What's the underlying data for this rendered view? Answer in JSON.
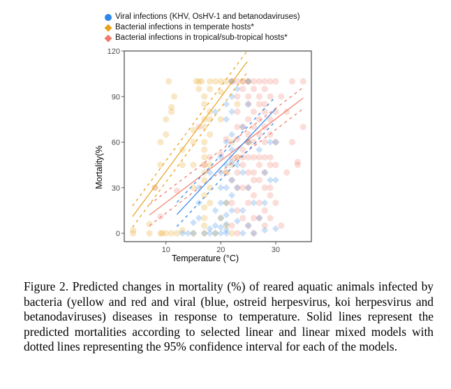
{
  "chart_data": {
    "type": "scatter",
    "title": "",
    "xlabel": "Temperature (°C)",
    "ylabel": "Mortality(%",
    "xlim": [
      2.4,
      36.5
    ],
    "ylim": [
      -5.5,
      120
    ],
    "xticks": [
      10,
      20,
      30
    ],
    "yticks": [
      0,
      30,
      60,
      90,
      120
    ],
    "grid": false,
    "legend_position": "top",
    "legend": [
      {
        "label": "Viral infections (KHV, OsHV-1 and betanodaviruses)",
        "color": "#2f86e8",
        "shape": "circle"
      },
      {
        "label": "Bacterial infections in temperate hosts*",
        "color": "#e8a21c",
        "shape": "diamond"
      },
      {
        "label": "Bacterial infections in tropical/sub-tropical hosts*",
        "color": "#f07a6a",
        "shape": "diamond"
      }
    ],
    "series": [
      {
        "name": "Bacterial infections in temperate hosts",
        "color": "#e8a21c",
        "marker": "circle",
        "points": [
          [
            4,
            0
          ],
          [
            4,
            2
          ],
          [
            7,
            0
          ],
          [
            7,
            6
          ],
          [
            9,
            0
          ],
          [
            9.3,
            0
          ],
          [
            10,
            0
          ],
          [
            11,
            0
          ],
          [
            12,
            0
          ],
          [
            8,
            30
          ],
          [
            9,
            45
          ],
          [
            9,
            60
          ],
          [
            10,
            65
          ],
          [
            10.5,
            100
          ],
          [
            10,
            75
          ],
          [
            11,
            80
          ],
          [
            11,
            83
          ],
          [
            11.5,
            90
          ],
          [
            13,
            45
          ],
          [
            13,
            55
          ],
          [
            15,
            30
          ],
          [
            15,
            45
          ],
          [
            15,
            60
          ],
          [
            15,
            68
          ],
          [
            15.5,
            100
          ],
          [
            16,
            100
          ],
          [
            16.5,
            100
          ],
          [
            16,
            95
          ],
          [
            17,
            90
          ],
          [
            17,
            85
          ],
          [
            17,
            75
          ],
          [
            17,
            70
          ],
          [
            17,
            60
          ],
          [
            17,
            55
          ],
          [
            17,
            50
          ],
          [
            17,
            45
          ],
          [
            17,
            40
          ],
          [
            17,
            35
          ],
          [
            17,
            25
          ],
          [
            17,
            17
          ],
          [
            17,
            10
          ],
          [
            18,
            100
          ],
          [
            18,
            95
          ],
          [
            18,
            80
          ],
          [
            18,
            75
          ],
          [
            18,
            65
          ],
          [
            18,
            45
          ],
          [
            18,
            30
          ],
          [
            18,
            20
          ],
          [
            19,
            100
          ],
          [
            20,
            100
          ],
          [
            20,
            93
          ],
          [
            20,
            75
          ],
          [
            21,
            100
          ],
          [
            21,
            40
          ],
          [
            21,
            20
          ],
          [
            22,
            100
          ],
          [
            22,
            60
          ],
          [
            22,
            45
          ],
          [
            23,
            85
          ],
          [
            23,
            50
          ],
          [
            24,
            100
          ],
          [
            25,
            100
          ],
          [
            25,
            60
          ],
          [
            15,
            0
          ],
          [
            17,
            0
          ],
          [
            17,
            5
          ],
          [
            20,
            10
          ],
          [
            21,
            5
          ],
          [
            19,
            0
          ],
          [
            22,
            0
          ],
          [
            13,
            2
          ]
        ]
      },
      {
        "name": "Bacterial infections in tropical/sub-tropical hosts",
        "color": "#f07a6a",
        "marker": "circle",
        "points": [
          [
            8,
            30
          ],
          [
            9,
            11
          ],
          [
            12,
            28
          ],
          [
            16,
            70
          ],
          [
            17,
            45
          ],
          [
            18,
            50
          ],
          [
            20,
            52
          ],
          [
            21,
            62
          ],
          [
            21,
            40
          ],
          [
            22,
            100
          ],
          [
            22,
            50
          ],
          [
            22,
            35
          ],
          [
            22,
            20
          ],
          [
            22,
            5
          ],
          [
            23,
            100
          ],
          [
            23,
            90
          ],
          [
            23,
            80
          ],
          [
            23,
            70
          ],
          [
            23,
            62
          ],
          [
            23,
            50
          ],
          [
            23,
            40
          ],
          [
            23,
            30
          ],
          [
            23,
            15
          ],
          [
            23,
            0
          ],
          [
            24,
            100
          ],
          [
            24,
            95
          ],
          [
            24,
            70
          ],
          [
            24,
            55
          ],
          [
            24,
            50
          ],
          [
            24,
            45
          ],
          [
            24,
            30
          ],
          [
            24,
            10
          ],
          [
            25,
            100
          ],
          [
            25,
            90
          ],
          [
            25,
            85
          ],
          [
            25,
            75
          ],
          [
            25,
            65
          ],
          [
            25,
            60
          ],
          [
            25,
            50
          ],
          [
            25,
            40
          ],
          [
            25,
            30
          ],
          [
            25,
            20
          ],
          [
            25,
            5
          ],
          [
            26,
            100
          ],
          [
            26,
            95
          ],
          [
            26,
            80
          ],
          [
            26,
            70
          ],
          [
            26,
            60
          ],
          [
            26,
            50
          ],
          [
            26,
            40
          ],
          [
            26,
            35
          ],
          [
            26,
            25
          ],
          [
            26,
            10
          ],
          [
            26,
            0
          ],
          [
            27,
            100
          ],
          [
            27,
            90
          ],
          [
            27,
            85
          ],
          [
            27,
            75
          ],
          [
            27,
            65
          ],
          [
            27,
            50
          ],
          [
            27,
            45
          ],
          [
            27,
            35
          ],
          [
            27,
            20
          ],
          [
            27,
            10
          ],
          [
            28,
            100
          ],
          [
            28,
            95
          ],
          [
            28,
            85
          ],
          [
            28,
            80
          ],
          [
            28,
            70
          ],
          [
            28,
            60
          ],
          [
            28,
            50
          ],
          [
            28,
            40
          ],
          [
            28,
            30
          ],
          [
            28,
            15
          ],
          [
            28,
            5
          ],
          [
            29,
            100
          ],
          [
            29,
            90
          ],
          [
            29,
            75
          ],
          [
            29,
            65
          ],
          [
            29,
            50
          ],
          [
            29,
            45
          ],
          [
            29,
            30
          ],
          [
            29,
            25
          ],
          [
            29,
            10
          ],
          [
            30,
            100
          ],
          [
            30,
            80
          ],
          [
            30,
            60
          ],
          [
            30,
            45
          ],
          [
            31,
            90
          ],
          [
            32,
            80
          ],
          [
            33,
            60
          ],
          [
            34,
            45
          ],
          [
            35,
            100
          ],
          [
            33,
            100
          ],
          [
            32,
            40
          ],
          [
            30,
            20
          ],
          [
            31,
            5
          ],
          [
            34,
            47
          ],
          [
            35,
            70
          ]
        ]
      },
      {
        "name": "Viral infections (KHV, OsHV-1 and betanodaviruses)",
        "color": "#2f86e8",
        "marker": "diamond",
        "points": [
          [
            13,
            0
          ],
          [
            14,
            0
          ],
          [
            15,
            0
          ],
          [
            15,
            7
          ],
          [
            16,
            10
          ],
          [
            16,
            20
          ],
          [
            17,
            0
          ],
          [
            18,
            0
          ],
          [
            18,
            3
          ],
          [
            19,
            0
          ],
          [
            19,
            5
          ],
          [
            19,
            15
          ],
          [
            20,
            0
          ],
          [
            20,
            4
          ],
          [
            20,
            10
          ],
          [
            20,
            20
          ],
          [
            20,
            30
          ],
          [
            20,
            40
          ],
          [
            20,
            50
          ],
          [
            21,
            0
          ],
          [
            21,
            2
          ],
          [
            21,
            6
          ],
          [
            21,
            12
          ],
          [
            21,
            20
          ],
          [
            21,
            30
          ],
          [
            21,
            45
          ],
          [
            21,
            60
          ],
          [
            21,
            75
          ],
          [
            21,
            85
          ],
          [
            22,
            100
          ],
          [
            22,
            90
          ],
          [
            22,
            80
          ],
          [
            22,
            65
          ],
          [
            22,
            55
          ],
          [
            22,
            47
          ],
          [
            22,
            35
          ],
          [
            22,
            25
          ],
          [
            22,
            15
          ],
          [
            23,
            95
          ],
          [
            23,
            45
          ],
          [
            23,
            30
          ],
          [
            23,
            8
          ],
          [
            24,
            70
          ],
          [
            24,
            40
          ],
          [
            24,
            15
          ],
          [
            24,
            0
          ],
          [
            25,
            100
          ],
          [
            25,
            85
          ],
          [
            25,
            60
          ],
          [
            25,
            30
          ],
          [
            25,
            5
          ],
          [
            26,
            20
          ],
          [
            26,
            0
          ],
          [
            27,
            55
          ],
          [
            27,
            10
          ],
          [
            28,
            40
          ],
          [
            28,
            20
          ],
          [
            28,
            2
          ],
          [
            29,
            60
          ],
          [
            29,
            35
          ],
          [
            30,
            3
          ],
          [
            30,
            60
          ],
          [
            30,
            35
          ],
          [
            18,
            40
          ],
          [
            19,
            80
          ],
          [
            16,
            30
          ]
        ]
      }
    ],
    "fits": [
      {
        "name": "temperate",
        "color": "#e8a21c",
        "x_range": [
          3.9,
          24.8
        ],
        "y_range": [
          11,
          113
        ],
        "ci_offset": 7
      },
      {
        "name": "tropical",
        "color": "#f07a6a",
        "x_range": [
          7,
          35
        ],
        "y_range": [
          12,
          89
        ],
        "ci_offset": 7
      },
      {
        "name": "viral",
        "color": "#2f86e8",
        "x_range": [
          12,
          30
        ],
        "y_range": [
          12.4,
          82
        ],
        "ci_offset": 8
      }
    ]
  },
  "caption": "Figure 2. Predicted changes in mortality (%) of reared aquatic animals infected by bacteria (yellow and red and viral (blue, ostreid herpesvirus, koi herpesvirus and betanodaviruses) diseases in response to temperature. Solid lines represent the predicted mortalities according to selected linear and linear mixed models with dotted lines representing the 95% confidence interval for each of the models."
}
